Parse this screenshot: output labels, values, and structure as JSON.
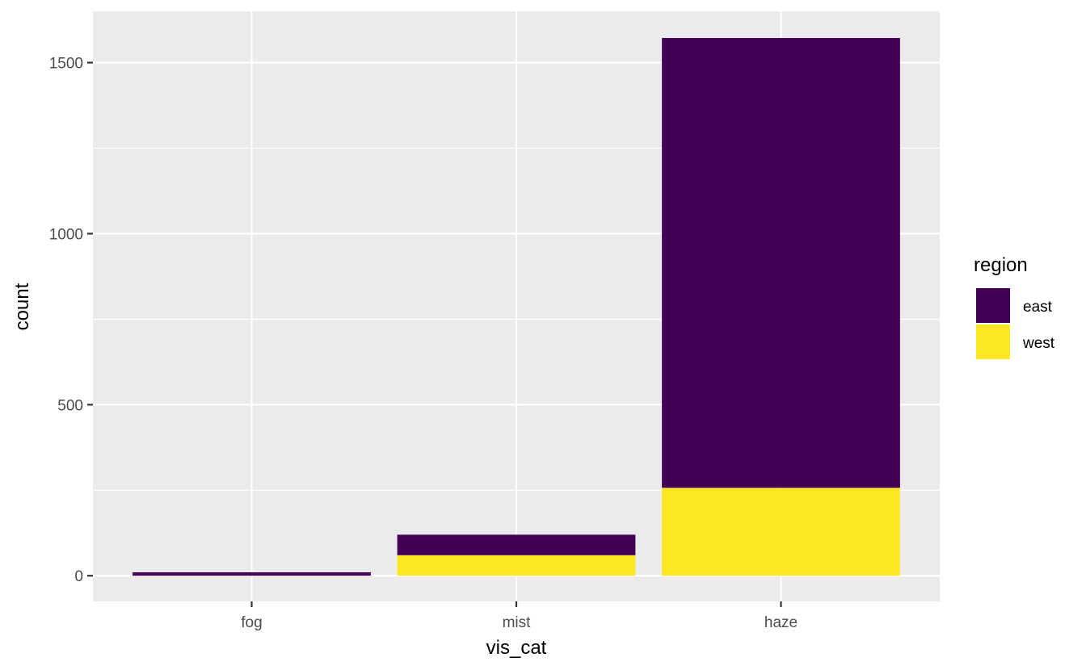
{
  "chart_data": {
    "type": "bar",
    "stacked": true,
    "title": "",
    "xlabel": "vis_cat",
    "ylabel": "count",
    "categories": [
      "fog",
      "mist",
      "haze"
    ],
    "series": [
      {
        "name": "east",
        "color": "#440154",
        "values": [
          10,
          60,
          1315
        ]
      },
      {
        "name": "west",
        "color": "#FDE725",
        "values": [
          0,
          60,
          257
        ]
      }
    ],
    "ylim": [
      -75,
      1650
    ],
    "yticks": [
      0,
      500,
      1000,
      1500
    ],
    "grid": true,
    "panel_background": "#EBEBEB",
    "legend": {
      "title": "region",
      "position": "right"
    }
  }
}
